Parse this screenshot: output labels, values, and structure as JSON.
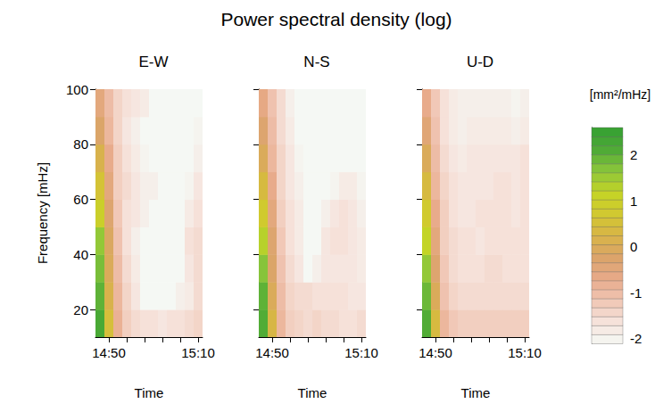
{
  "chart_data": {
    "type": "heatmap",
    "title": "Power spectral density (log)",
    "xlabel": "Time",
    "ylabel": "Frequency [mHz]",
    "categories": [
      null,
      "14:50",
      null,
      null,
      null,
      null,
      null,
      null,
      null,
      null,
      null,
      "15:10"
    ],
    "y": [
      15,
      25,
      35,
      45,
      55,
      65,
      75,
      85,
      95
    ],
    "ylim": [
      10,
      100
    ],
    "yticks": [
      20,
      40,
      60,
      80,
      100
    ],
    "colorbar": {
      "label": "[mm²/mHz]",
      "range": [
        -2.1,
        2.6
      ],
      "ticks": [
        -2,
        -1,
        0,
        1,
        2
      ]
    },
    "panels": [
      {
        "title": "E-W",
        "values": [
          [
            2.2,
            2.0,
            1.8,
            1.6,
            1.0,
            0.6,
            0.2,
            -0.2,
            -0.5
          ],
          [
            0.5,
            0.2,
            0.0,
            -0.1,
            -0.3,
            -0.5,
            -0.7,
            -0.9,
            -1.0
          ],
          [
            -0.8,
            -0.9,
            -1.0,
            -1.1,
            -1.2,
            -1.3,
            -1.3,
            -1.4,
            -1.4
          ],
          [
            -1.3,
            -1.4,
            -1.5,
            -1.6,
            -1.6,
            -1.5,
            -1.6,
            -1.7,
            -1.6
          ],
          [
            -1.5,
            -1.7,
            -1.8,
            -1.9,
            -1.7,
            -1.7,
            -1.8,
            -1.9,
            -1.7
          ],
          [
            -1.6,
            -2.1,
            -2.1,
            -2.1,
            -1.9,
            -1.9,
            -2.0,
            -2.1,
            -1.8
          ],
          [
            -1.6,
            -2.1,
            -2.1,
            -2.1,
            -2.1,
            -1.9,
            -2.1,
            -2.1,
            -2.1
          ],
          [
            -1.7,
            -2.1,
            -2.1,
            -2.1,
            -2.1,
            -2.1,
            -2.1,
            -2.1,
            -2.1
          ],
          [
            -1.6,
            -2.1,
            -2.1,
            -2.1,
            -2.1,
            -2.1,
            -2.1,
            -2.1,
            -2.1
          ],
          [
            -1.6,
            -1.9,
            -2.1,
            -2.1,
            -2.1,
            -2.1,
            -2.1,
            -2.1,
            -2.1
          ],
          [
            -1.5,
            -1.8,
            -1.7,
            -1.6,
            -1.8,
            -2.0,
            -2.1,
            -2.1,
            -2.1
          ],
          [
            -1.4,
            -1.5,
            -1.5,
            -1.5,
            -1.6,
            -1.7,
            -1.9,
            -2.0,
            -2.1
          ]
        ]
      },
      {
        "title": "N-S",
        "tick_labels": "x",
        "values": [
          [
            2.1,
            2.0,
            1.7,
            1.3,
            0.8,
            0.4,
            0.0,
            -0.3,
            -0.6
          ],
          [
            0.3,
            0.0,
            -0.2,
            -0.3,
            -0.5,
            -0.7,
            -0.9,
            -1.0,
            -1.1
          ],
          [
            -0.9,
            -1.0,
            -1.1,
            -1.2,
            -1.3,
            -1.4,
            -1.4,
            -1.5,
            -1.5
          ],
          [
            -1.3,
            -1.4,
            -1.5,
            -1.6,
            -1.6,
            -1.7,
            -1.7,
            -1.8,
            -1.9
          ],
          [
            -1.4,
            -1.5,
            -1.7,
            -1.8,
            -1.8,
            -1.9,
            -2.0,
            -2.1,
            -2.1
          ],
          [
            -1.5,
            -1.5,
            -2.1,
            -2.1,
            -2.1,
            -2.1,
            -2.1,
            -2.1,
            -2.1
          ],
          [
            -1.4,
            -1.6,
            -1.9,
            -2.1,
            -2.1,
            -2.1,
            -2.1,
            -2.1,
            -2.1
          ],
          [
            -1.5,
            -1.6,
            -1.7,
            -1.7,
            -1.9,
            -2.1,
            -2.1,
            -2.1,
            -2.1
          ],
          [
            -1.5,
            -1.6,
            -1.7,
            -1.6,
            -1.7,
            -2.0,
            -2.1,
            -2.1,
            -2.1
          ],
          [
            -1.6,
            -1.6,
            -1.7,
            -1.6,
            -1.6,
            -1.8,
            -2.1,
            -2.1,
            -2.1
          ],
          [
            -1.6,
            -1.7,
            -1.7,
            -1.7,
            -1.7,
            -1.8,
            -2.1,
            -2.1,
            -2.1
          ],
          [
            -1.5,
            -1.7,
            -1.8,
            -1.8,
            -1.9,
            -2.0,
            -2.1,
            -2.1,
            -2.1
          ]
        ]
      },
      {
        "title": "U-D",
        "tick_labels": "x",
        "values": [
          [
            2.1,
            1.9,
            1.6,
            1.2,
            0.8,
            0.4,
            0.0,
            -0.4,
            -0.7
          ],
          [
            0.4,
            0.0,
            -0.3,
            -0.5,
            -0.7,
            -0.9,
            -1.0,
            -1.1,
            -1.2
          ],
          [
            -0.9,
            -1.1,
            -1.2,
            -1.3,
            -1.3,
            -1.4,
            -1.5,
            -1.6,
            -1.6
          ],
          [
            -1.2,
            -1.4,
            -1.5,
            -1.5,
            -1.6,
            -1.6,
            -1.7,
            -1.8,
            -1.8
          ],
          [
            -1.3,
            -1.5,
            -1.6,
            -1.6,
            -1.7,
            -1.7,
            -1.8,
            -1.9,
            -1.9
          ],
          [
            -1.3,
            -1.5,
            -1.6,
            -1.6,
            -1.7,
            -1.7,
            -1.7,
            -1.8,
            -1.9
          ],
          [
            -1.3,
            -1.5,
            -1.6,
            -1.7,
            -1.6,
            -1.7,
            -1.7,
            -1.8,
            -1.9
          ],
          [
            -1.3,
            -1.5,
            -1.5,
            -1.6,
            -1.6,
            -1.7,
            -1.7,
            -1.8,
            -1.9
          ],
          [
            -1.3,
            -1.5,
            -1.5,
            -1.6,
            -1.6,
            -1.6,
            -1.7,
            -1.8,
            -1.9
          ],
          [
            -1.3,
            -1.5,
            -1.6,
            -1.6,
            -1.6,
            -1.6,
            -1.7,
            -1.8,
            -1.9
          ],
          [
            -1.3,
            -1.5,
            -1.6,
            -1.6,
            -1.7,
            -1.7,
            -1.7,
            -1.9,
            -2.0
          ],
          [
            -1.3,
            -1.5,
            -1.6,
            -1.6,
            -1.6,
            -1.6,
            -1.6,
            -1.8,
            -1.9
          ]
        ]
      }
    ]
  }
}
